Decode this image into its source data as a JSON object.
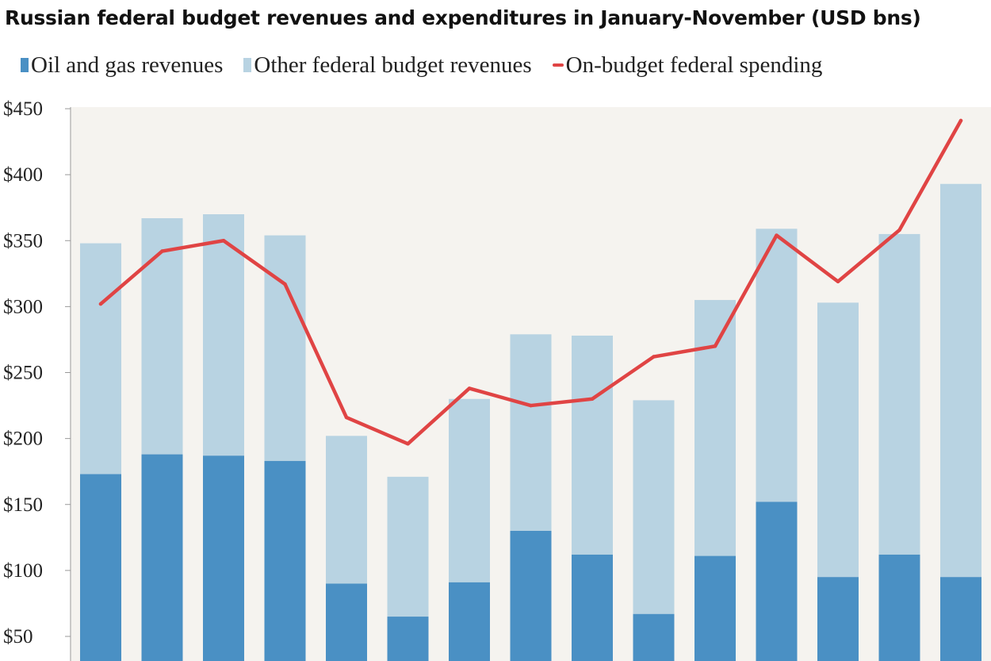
{
  "chart_data": {
    "type": "bar",
    "title": "Russian federal budget revenues and expenditures in January-November (USD bns)",
    "categories": [
      "",
      "",
      "",
      "",
      "",
      "",
      "",
      "",
      "",
      "",
      "",
      "",
      "",
      "",
      ""
    ],
    "series": [
      {
        "name": "Oil and gas revenues",
        "kind": "stacked-bar",
        "color": "#4a90c4",
        "values": [
          173,
          188,
          187,
          183,
          90,
          65,
          91,
          130,
          112,
          67,
          111,
          152,
          95,
          112,
          95
        ]
      },
      {
        "name": "Other federal budget revenues",
        "kind": "stacked-bar",
        "color": "#b8d3e2",
        "values": [
          175,
          179,
          183,
          171,
          112,
          106,
          139,
          149,
          166,
          162,
          194,
          207,
          208,
          243,
          298
        ]
      },
      {
        "name": "On-budget federal spending",
        "kind": "line",
        "color": "#e04444",
        "values": [
          302,
          342,
          350,
          317,
          216,
          196,
          238,
          225,
          230,
          262,
          270,
          354,
          319,
          358,
          441
        ]
      }
    ],
    "yticks": [
      "$50",
      "$100",
      "$150",
      "$200",
      "$250",
      "$300",
      "$350",
      "$400",
      "$450"
    ],
    "ylim": [
      30,
      450
    ],
    "plot_background": "#f5f3ef",
    "grid": false,
    "legend_position": "top"
  }
}
